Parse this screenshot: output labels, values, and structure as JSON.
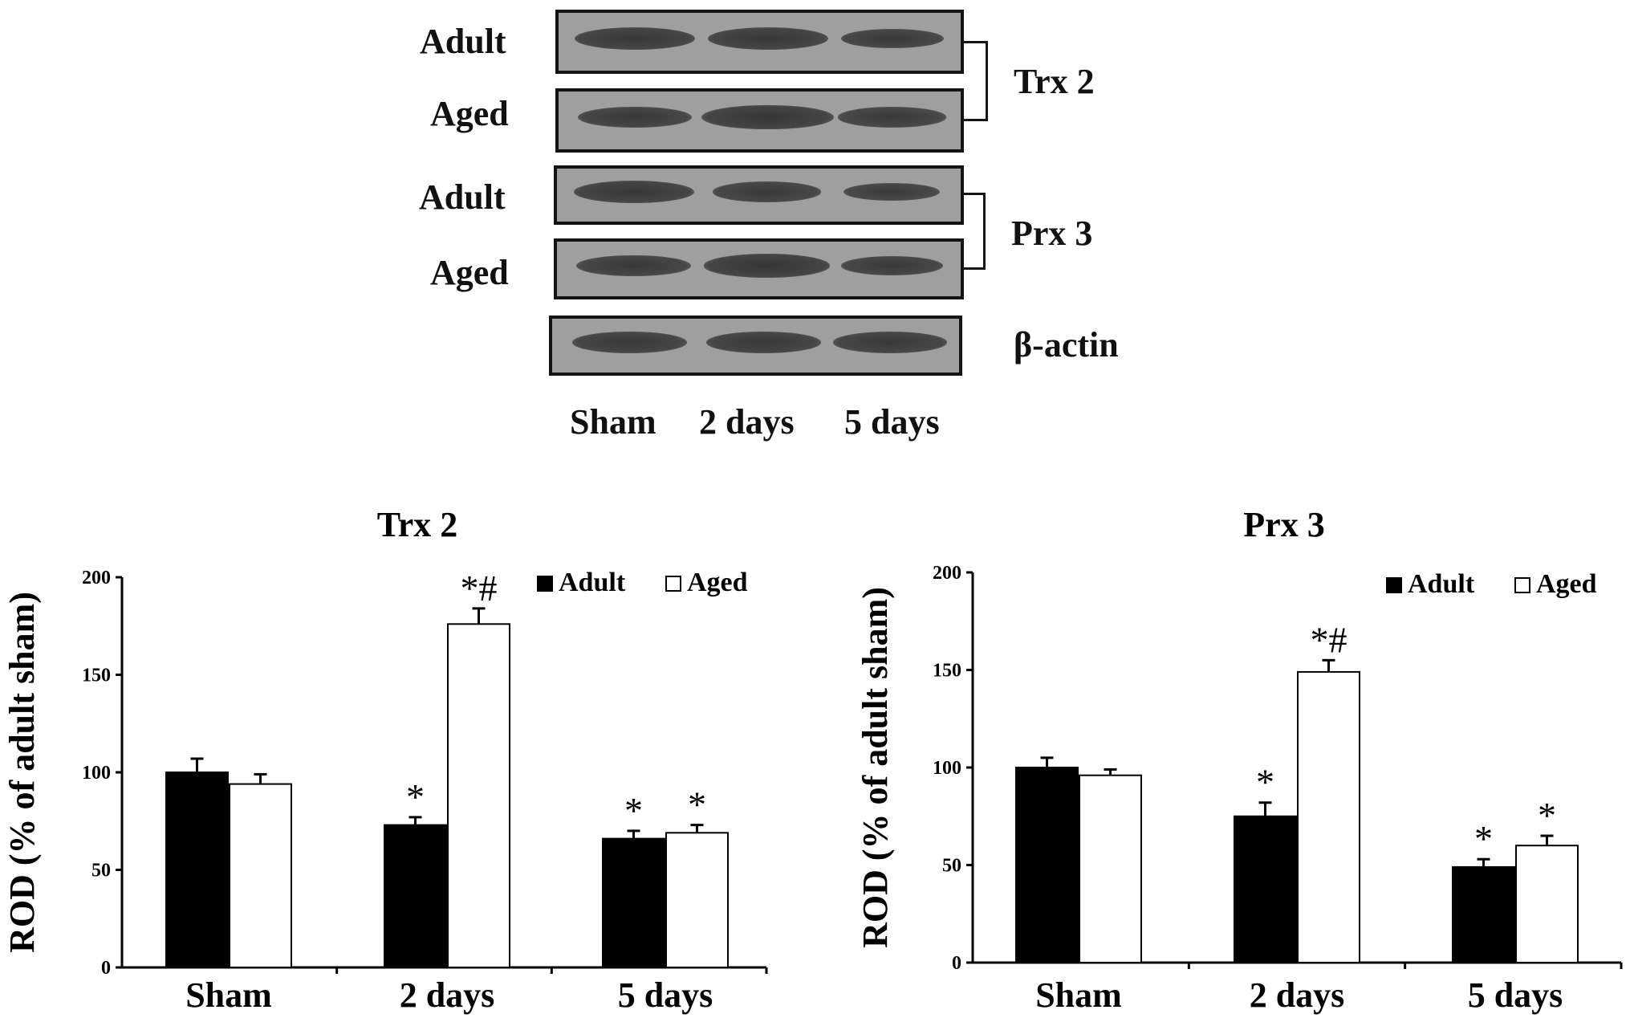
{
  "blot": {
    "rows": [
      {
        "label": "Adult",
        "bands": [
          1.0,
          1.0,
          0.85
        ]
      },
      {
        "label": "Aged",
        "bands": [
          0.95,
          1.1,
          0.9
        ]
      },
      {
        "label": "Adult",
        "bands": [
          1.0,
          0.9,
          0.8
        ]
      },
      {
        "label": "Aged",
        "bands": [
          0.95,
          1.05,
          0.85
        ]
      },
      {
        "label": "",
        "bands": [
          0.95,
          0.95,
          0.95
        ]
      }
    ],
    "group_labels": {
      "trx2": "Trx 2",
      "prx3": "Prx 3",
      "actin": "β-actin"
    },
    "lanes": [
      "Sham",
      "2 days",
      "5 days"
    ]
  },
  "chart_data": [
    {
      "type": "bar",
      "title": "Trx 2",
      "xlabel": "",
      "ylabel": "ROD (% of adult sham)",
      "ylim": [
        0,
        200
      ],
      "yticks": [
        "0",
        "50",
        "100",
        "150",
        "200"
      ],
      "categories": [
        "Sham",
        "2 days",
        "5 days"
      ],
      "series": [
        {
          "name": "Adult",
          "values": [
            100,
            73,
            66
          ],
          "errors": [
            7,
            4,
            4
          ],
          "annotations": [
            "",
            "*",
            "*"
          ],
          "color": "#000000"
        },
        {
          "name": "Aged",
          "values": [
            94,
            176,
            69
          ],
          "errors": [
            5,
            8,
            4
          ],
          "annotations": [
            "",
            "*#",
            "*"
          ],
          "color": "#ffffff"
        }
      ],
      "legend": "top-right",
      "grid": false
    },
    {
      "type": "bar",
      "title": "Prx 3",
      "xlabel": "",
      "ylabel": "ROD (% of adult sham)",
      "ylim": [
        0,
        200
      ],
      "yticks": [
        "0",
        "50",
        "100",
        "150",
        "200"
      ],
      "categories": [
        "Sham",
        "2 days",
        "5 days"
      ],
      "series": [
        {
          "name": "Adult",
          "values": [
            100,
            75,
            49
          ],
          "errors": [
            5,
            7,
            4
          ],
          "annotations": [
            "",
            "*",
            "*"
          ],
          "color": "#000000"
        },
        {
          "name": "Aged",
          "values": [
            96,
            149,
            60
          ],
          "errors": [
            3,
            6,
            5
          ],
          "annotations": [
            "",
            "*#",
            "*"
          ],
          "color": "#ffffff"
        }
      ],
      "legend": "top-right",
      "grid": false
    }
  ]
}
